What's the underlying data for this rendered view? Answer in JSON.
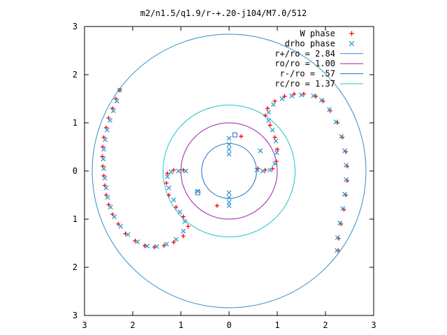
{
  "chart_data": {
    "type": "scatter",
    "title": "m2/n1.5/q1.9/r-+.20-j104/M7.0/512",
    "xlim": [
      -3,
      3
    ],
    "ylim": [
      -3,
      3
    ],
    "xticks": [
      -3,
      -2,
      -1,
      0,
      1,
      2,
      3
    ],
    "yticks": [
      -3,
      -2,
      -1,
      0,
      1,
      2,
      3
    ],
    "xtick_labels": [
      "3",
      "2",
      "1",
      "0",
      "1",
      "2",
      "3"
    ],
    "ytick_labels": [
      "3",
      "2",
      "1",
      "0",
      "1",
      "2",
      "3"
    ],
    "grid": false,
    "legend_position": "top-right",
    "legend": [
      {
        "label": "W phase",
        "kind": "point",
        "marker": "plus",
        "color": "#ff0000"
      },
      {
        "label": "drho phase",
        "kind": "point",
        "marker": "cross",
        "color": "#3399cc"
      },
      {
        "label": "r+/ro = 2.84",
        "kind": "line",
        "color": "#2b8fc7"
      },
      {
        "label": "ro/ro = 1.00",
        "kind": "line",
        "color": "#9b1fb0"
      },
      {
        "label": "r-/ro = .57",
        "kind": "line",
        "color": "#1f6fc0"
      },
      {
        "label": "rc/ro = 1.37",
        "kind": "line",
        "color": "#22c4cc"
      }
    ],
    "circles": [
      {
        "r": 2.84,
        "color": "#2b8fc7"
      },
      {
        "r": 1.0,
        "color": "#9b1fb0"
      },
      {
        "r": 0.57,
        "color": "#1f6fc0"
      },
      {
        "r": 1.37,
        "color": "#22c4cc"
      }
    ],
    "series": [
      {
        "name": "W phase",
        "marker": "plus",
        "color": "#ff0000",
        "points": [
          [
            -2.27,
            1.68
          ],
          [
            -2.35,
            1.5
          ],
          [
            -2.42,
            1.3
          ],
          [
            -2.5,
            1.1
          ],
          [
            -2.55,
            0.9
          ],
          [
            -2.6,
            0.7
          ],
          [
            -2.62,
            0.5
          ],
          [
            -2.63,
            0.3
          ],
          [
            -2.62,
            0.1
          ],
          [
            -2.6,
            -0.1
          ],
          [
            -2.58,
            -0.3
          ],
          [
            -2.55,
            -0.5
          ],
          [
            -2.5,
            -0.7
          ],
          [
            -2.42,
            -0.9
          ],
          [
            -2.3,
            -1.1
          ],
          [
            -2.15,
            -1.3
          ],
          [
            -1.95,
            -1.45
          ],
          [
            -1.75,
            -1.55
          ],
          [
            -1.55,
            -1.58
          ],
          [
            -1.35,
            -1.55
          ],
          [
            -1.15,
            -1.48
          ],
          [
            -0.95,
            -1.35
          ],
          [
            -0.85,
            -1.15
          ],
          [
            -0.95,
            -0.95
          ],
          [
            -1.1,
            -0.75
          ],
          [
            -1.25,
            -0.5
          ],
          [
            -1.3,
            -0.25
          ],
          [
            -1.28,
            -0.05
          ],
          [
            -1.15,
            0.02
          ],
          [
            -0.95,
            0.02
          ],
          [
            1.8,
            1.55
          ],
          [
            1.95,
            1.45
          ],
          [
            2.1,
            1.25
          ],
          [
            2.25,
            1.0
          ],
          [
            2.35,
            0.7
          ],
          [
            2.42,
            0.4
          ],
          [
            2.45,
            0.1
          ],
          [
            2.45,
            -0.2
          ],
          [
            2.42,
            -0.5
          ],
          [
            2.38,
            -0.8
          ],
          [
            2.32,
            -1.1
          ],
          [
            2.27,
            -1.4
          ],
          [
            2.26,
            -1.65
          ],
          [
            1.55,
            1.6
          ],
          [
            1.35,
            1.6
          ],
          [
            1.15,
            1.55
          ],
          [
            0.95,
            1.45
          ],
          [
            0.8,
            1.3
          ],
          [
            0.75,
            1.15
          ],
          [
            0.85,
            0.95
          ],
          [
            0.95,
            0.7
          ],
          [
            1.0,
            0.45
          ],
          [
            0.98,
            0.2
          ],
          [
            0.9,
            0.05
          ],
          [
            0.75,
            0.02
          ],
          [
            0.6,
            0.05
          ],
          [
            0.25,
            0.72
          ],
          [
            -0.25,
            -0.72
          ]
        ]
      },
      {
        "name": "drho phase",
        "marker": "cross",
        "color": "#3399cc",
        "points": [
          [
            -2.27,
            1.68
          ],
          [
            -2.33,
            1.45
          ],
          [
            -2.4,
            1.25
          ],
          [
            -2.47,
            1.05
          ],
          [
            -2.53,
            0.85
          ],
          [
            -2.57,
            0.65
          ],
          [
            -2.6,
            0.45
          ],
          [
            -2.61,
            0.25
          ],
          [
            -2.6,
            0.05
          ],
          [
            -2.58,
            -0.15
          ],
          [
            -2.55,
            -0.35
          ],
          [
            -2.52,
            -0.55
          ],
          [
            -2.46,
            -0.75
          ],
          [
            -2.38,
            -0.95
          ],
          [
            -2.25,
            -1.15
          ],
          [
            -2.1,
            -1.32
          ],
          [
            -1.9,
            -1.47
          ],
          [
            -1.7,
            -1.56
          ],
          [
            -1.5,
            -1.57
          ],
          [
            -1.3,
            -1.52
          ],
          [
            -1.1,
            -1.42
          ],
          [
            -0.95,
            -1.25
          ],
          [
            -0.92,
            -1.05
          ],
          [
            -1.02,
            -0.85
          ],
          [
            -1.15,
            -0.6
          ],
          [
            -1.25,
            -0.35
          ],
          [
            -1.28,
            -0.12
          ],
          [
            -1.2,
            -0.02
          ],
          [
            -1.05,
            0.0
          ],
          [
            -0.9,
            0.0
          ],
          [
            1.75,
            1.56
          ],
          [
            1.92,
            1.47
          ],
          [
            2.08,
            1.28
          ],
          [
            2.22,
            1.02
          ],
          [
            2.33,
            0.72
          ],
          [
            2.4,
            0.42
          ],
          [
            2.43,
            0.12
          ],
          [
            2.43,
            -0.18
          ],
          [
            2.4,
            -0.48
          ],
          [
            2.36,
            -0.78
          ],
          [
            2.3,
            -1.08
          ],
          [
            2.25,
            -1.38
          ],
          [
            2.24,
            -1.65
          ],
          [
            1.5,
            1.58
          ],
          [
            1.3,
            1.56
          ],
          [
            1.1,
            1.5
          ],
          [
            0.92,
            1.38
          ],
          [
            0.82,
            1.22
          ],
          [
            0.82,
            1.05
          ],
          [
            0.9,
            0.85
          ],
          [
            0.97,
            0.62
          ],
          [
            0.99,
            0.38
          ],
          [
            0.95,
            0.15
          ],
          [
            0.85,
            0.02
          ],
          [
            0.7,
            0.0
          ],
          [
            0.58,
            0.02
          ],
          [
            0.0,
            0.68
          ],
          [
            0.0,
            0.55
          ],
          [
            0.0,
            0.45
          ],
          [
            0.0,
            0.35
          ],
          [
            0.0,
            -0.45
          ],
          [
            0.0,
            -0.55
          ],
          [
            0.0,
            -0.65
          ],
          [
            0.0,
            -0.72
          ],
          [
            0.65,
            0.42
          ],
          [
            -0.65,
            -0.42
          ]
        ]
      }
    ],
    "open_squares": [
      {
        "x": 0.12,
        "y": 0.75,
        "color": "#1f6fc0"
      },
      {
        "x": -0.65,
        "y": -0.45,
        "color": "#1f6fc0"
      }
    ]
  }
}
